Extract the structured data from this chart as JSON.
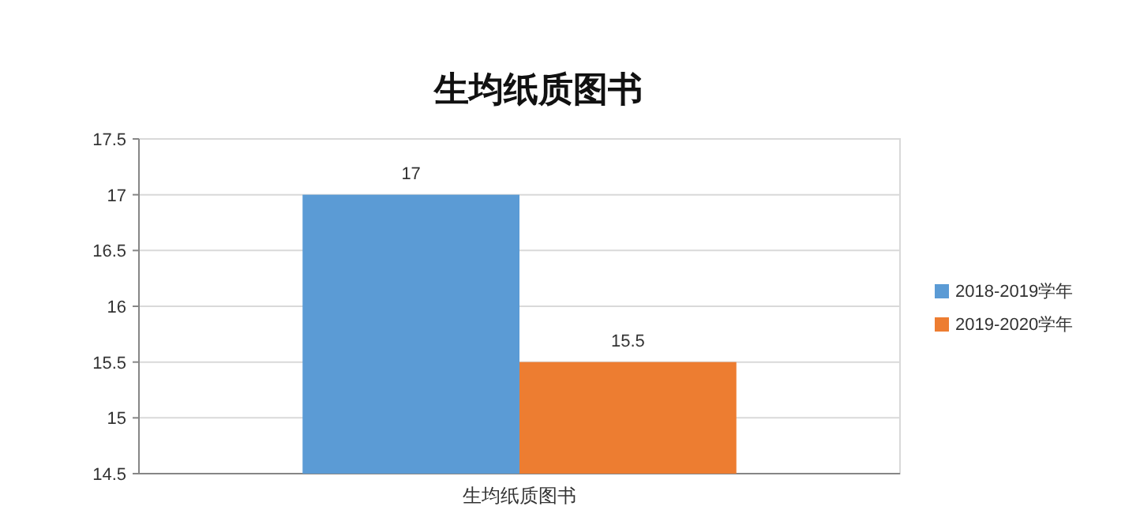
{
  "chart_data": {
    "type": "bar",
    "title": "生均纸质图书",
    "categories": [
      "生均纸质图书"
    ],
    "series": [
      {
        "name": "2018-2019学年",
        "color": "#5b9bd5",
        "values": [
          17
        ]
      },
      {
        "name": "2019-2020学年",
        "color": "#ed7d31",
        "values": [
          15.5
        ]
      }
    ],
    "ylim": [
      14.5,
      17.5
    ],
    "yticks": [
      14.5,
      15,
      15.5,
      16,
      16.5,
      17,
      17.5
    ],
    "grid": "y",
    "legend": "right",
    "data_labels": true
  }
}
